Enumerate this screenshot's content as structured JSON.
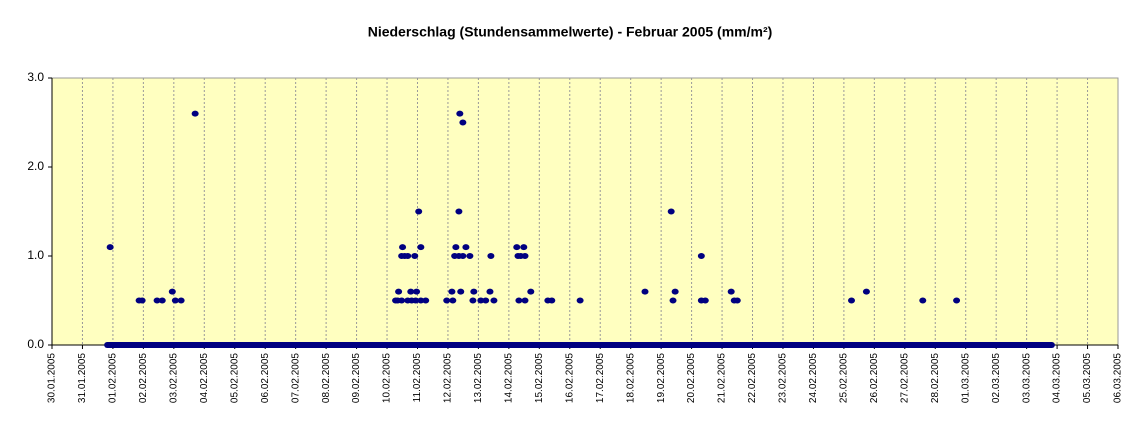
{
  "chart_data": {
    "type": "scatter",
    "title": "Niederschlag (Stundensammelwerte) - Februar 2005 (mm/m²)",
    "xlim": [
      0,
      35
    ],
    "ylim": [
      0,
      3
    ],
    "yticks": [
      {
        "value": 0,
        "label": "0.0"
      },
      {
        "value": 1,
        "label": "1.0"
      },
      {
        "value": 2,
        "label": "2.0"
      },
      {
        "value": 3,
        "label": "3.0"
      }
    ],
    "xticks": [
      {
        "value": 0,
        "label": "30.01.2005"
      },
      {
        "value": 1,
        "label": "31.01.2005"
      },
      {
        "value": 2,
        "label": "01.02.2005"
      },
      {
        "value": 3,
        "label": "02.02.2005"
      },
      {
        "value": 4,
        "label": "03.02.2005"
      },
      {
        "value": 5,
        "label": "04.02.2005"
      },
      {
        "value": 6,
        "label": "05.02.2005"
      },
      {
        "value": 7,
        "label": "06.02.2005"
      },
      {
        "value": 8,
        "label": "07.02.2005"
      },
      {
        "value": 9,
        "label": "08.02.2005"
      },
      {
        "value": 10,
        "label": "09.02.2005"
      },
      {
        "value": 11,
        "label": "10.02.2005"
      },
      {
        "value": 12,
        "label": "11.02.2005"
      },
      {
        "value": 13,
        "label": "12.02.2005"
      },
      {
        "value": 14,
        "label": "13.02.2005"
      },
      {
        "value": 15,
        "label": "14.02.2005"
      },
      {
        "value": 16,
        "label": "15.02.2005"
      },
      {
        "value": 17,
        "label": "16.02.2005"
      },
      {
        "value": 18,
        "label": "17.02.2005"
      },
      {
        "value": 19,
        "label": "18.02.2005"
      },
      {
        "value": 20,
        "label": "19.02.2005"
      },
      {
        "value": 21,
        "label": "20.02.2005"
      },
      {
        "value": 22,
        "label": "21.02.2005"
      },
      {
        "value": 23,
        "label": "22.02.2005"
      },
      {
        "value": 24,
        "label": "23.02.2005"
      },
      {
        "value": 25,
        "label": "24.02.2005"
      },
      {
        "value": 26,
        "label": "25.02.2005"
      },
      {
        "value": 27,
        "label": "26.02.2005"
      },
      {
        "value": 28,
        "label": "27.02.2005"
      },
      {
        "value": 29,
        "label": "28.02.2005"
      },
      {
        "value": 30,
        "label": "01.03.2005"
      },
      {
        "value": 31,
        "label": "02.03.2005"
      },
      {
        "value": 32,
        "label": "03.03.2005"
      },
      {
        "value": 33,
        "label": "04.03.2005"
      },
      {
        "value": 34,
        "label": "05.03.2005"
      },
      {
        "value": 35,
        "label": "06.03.2005"
      }
    ],
    "grid": true,
    "background": "#ffffc0",
    "series": [
      {
        "color": "#000080",
        "x": [
          1.91,
          2.86,
          2.96,
          3.45,
          3.62,
          3.95,
          4.05,
          4.24,
          4.7,
          11.28,
          11.35,
          11.48,
          11.68,
          11.81,
          11.94,
          12.11,
          12.27,
          11.38,
          11.78,
          11.97,
          11.48,
          11.58,
          11.68,
          11.91,
          11.51,
          12.11,
          12.04,
          12.96,
          13.16,
          13.82,
          14.08,
          14.24,
          14.51,
          13.13,
          13.42,
          13.85,
          14.38,
          13.22,
          13.36,
          13.49,
          13.72,
          14.41,
          13.26,
          13.59,
          13.36,
          13.39,
          13.49,
          15.26,
          15.49,
          15.3,
          15.39,
          15.53,
          15.33,
          15.53,
          15.72,
          16.28,
          16.41,
          17.34,
          19.47,
          20.33,
          20.39,
          20.46,
          21.32,
          21.32,
          21.45,
          22.3,
          22.4,
          22.5,
          26.25,
          26.74,
          28.59,
          29.7
        ],
        "values": [
          1.1,
          0.5,
          0.5,
          0.5,
          0.5,
          0.6,
          0.5,
          0.5,
          2.6,
          0.5,
          0.5,
          0.5,
          0.5,
          0.5,
          0.5,
          0.5,
          0.5,
          0.6,
          0.6,
          0.6,
          1.0,
          1.0,
          1.0,
          1.0,
          1.1,
          1.1,
          1.5,
          0.5,
          0.5,
          0.5,
          0.5,
          0.5,
          0.5,
          0.6,
          0.6,
          0.6,
          0.6,
          1.0,
          1.0,
          1.0,
          1.0,
          1.0,
          1.1,
          1.1,
          1.5,
          2.6,
          2.5,
          1.1,
          1.1,
          1.0,
          1.0,
          1.0,
          0.5,
          0.5,
          0.6,
          0.5,
          0.5,
          0.5,
          0.6,
          1.5,
          0.5,
          0.6,
          1.0,
          0.5,
          0.5,
          0.6,
          0.5,
          0.5,
          0.5,
          0.6,
          0.5,
          0.5
        ]
      },
      {
        "color": "#000080",
        "x": [
          1.81,
          32.83
        ],
        "values": [
          0,
          0
        ],
        "line": true
      }
    ]
  }
}
